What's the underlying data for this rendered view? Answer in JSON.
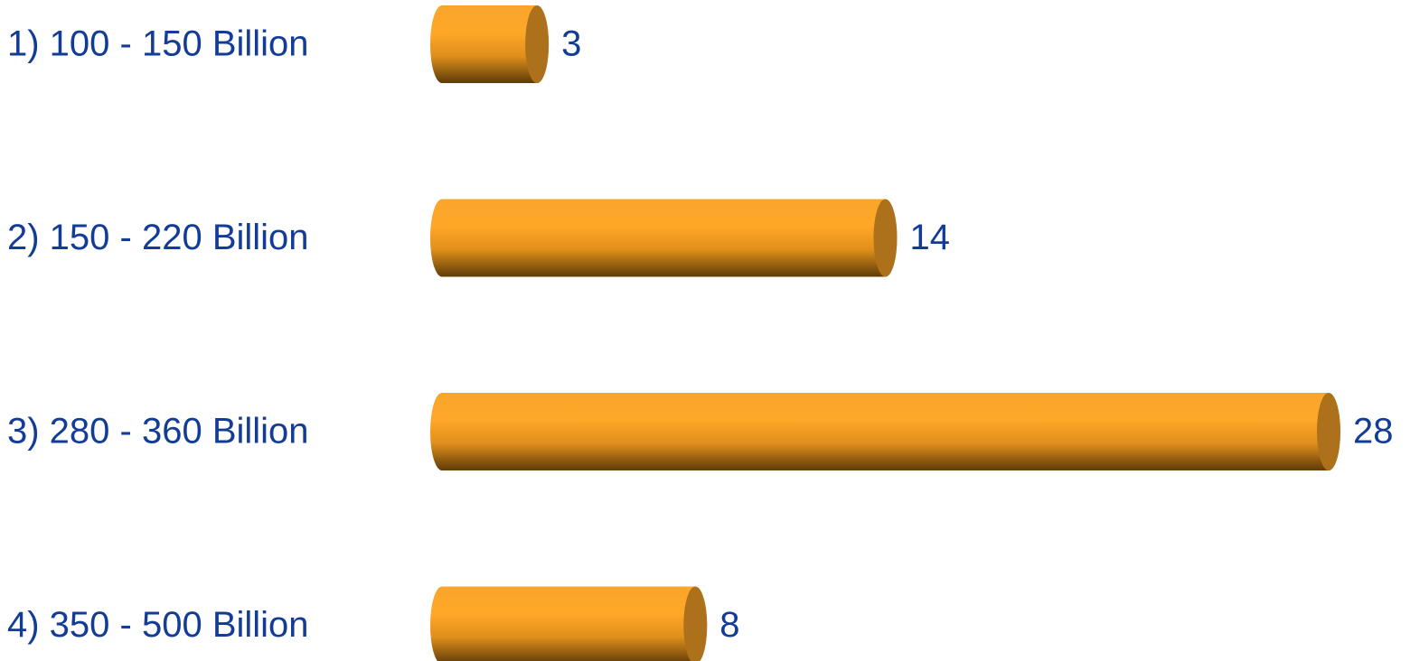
{
  "chart_data": {
    "type": "bar",
    "orientation": "horizontal",
    "categories": [
      "1) 100 - 150 Billion",
      "2) 150 - 220 Billion",
      "3) 280 - 360 Billion",
      "4) 350 - 500 Billion"
    ],
    "values": [
      3,
      14,
      28,
      8
    ],
    "color": "#f7a128"
  }
}
